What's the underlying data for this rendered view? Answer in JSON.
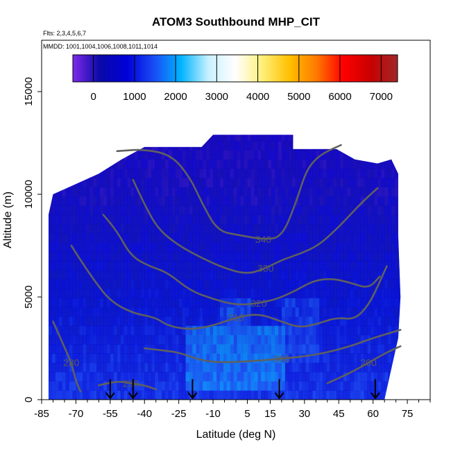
{
  "chart_data": {
    "type": "heatmap",
    "title": "ATOM3 Southbound MHP_CIT",
    "subtitle_flights": "Flts: 2,3,4,5,6,7",
    "subtitle_dates": "MMDD: 1001,1004,1006,1008,1011,1014",
    "xlabel": "Latitude (deg N)",
    "ylabel": "Altitude (m)",
    "xlim": [
      -85,
      85
    ],
    "ylim": [
      0,
      17500
    ],
    "x_ticks": [
      -85,
      -70,
      -55,
      -40,
      -25,
      -10,
      5,
      15,
      30,
      45,
      60,
      75
    ],
    "x_tick_labels": [
      "-85",
      "-70",
      "-55",
      "-40",
      "-25",
      "-10",
      "5",
      "15",
      "30",
      "45",
      "60",
      "75"
    ],
    "y_ticks": [
      0,
      5000,
      10000,
      15000
    ],
    "y_tick_labels": [
      "0",
      "5000",
      "10000",
      "15000"
    ],
    "colorbar": {
      "range": [
        -500,
        7400
      ],
      "ticks": [
        0,
        1000,
        2000,
        3000,
        4000,
        5000,
        6000,
        7000
      ],
      "tick_labels": [
        "0",
        "1000",
        "2000",
        "3000",
        "4000",
        "5000",
        "6000",
        "7000"
      ],
      "colors": [
        "#7f2ae8",
        "#0a0aa8",
        "#0000d8",
        "#1a4cf5",
        "#00b4ff",
        "#c8f0ff",
        "#ffffff",
        "#fff07a",
        "#ffc000",
        "#ff7a00",
        "#ff0000",
        "#c80000",
        "#a02828"
      ]
    },
    "data_extent": {
      "lat_min": -82,
      "lat_max": 71,
      "alt_top_north": 12900,
      "alt_top_mid": 12300,
      "alt_top_south": 10500
    },
    "enhanced_regions": [
      {
        "lat": [
          -23,
          20
        ],
        "alt": [
          200,
          3500
        ],
        "value": 1800
      },
      {
        "lat": [
          -8,
          6
        ],
        "alt": [
          2000,
          4500
        ],
        "value": 1500
      },
      {
        "lat": [
          20,
          35
        ],
        "alt": [
          1500,
          4500
        ],
        "value": 1300
      }
    ],
    "contours": [
      {
        "level": 280,
        "label": "280",
        "points": [
          [
            -80,
            3800
          ],
          [
            -76,
            2800
          ],
          [
            -72,
            1800
          ],
          [
            -70,
            900
          ],
          [
            -68,
            400
          ]
        ]
      },
      {
        "level": 290,
        "label": "290",
        "points": [
          [
            -60,
            700
          ],
          [
            -52,
            900
          ],
          [
            -46,
            800
          ],
          [
            -40,
            700
          ],
          [
            -35,
            500
          ]
        ]
      },
      {
        "level": 290,
        "label": "290",
        "points": [
          [
            40,
            800
          ],
          [
            50,
            1300
          ],
          [
            58,
            1800
          ],
          [
            66,
            2300
          ],
          [
            72,
            2600
          ]
        ]
      },
      {
        "level": 300,
        "label": "300",
        "points": [
          [
            -40,
            2500
          ],
          [
            -32,
            2400
          ],
          [
            -25,
            2300
          ],
          [
            -15,
            1900
          ],
          [
            -5,
            1800
          ],
          [
            10,
            1900
          ],
          [
            20,
            2000
          ],
          [
            30,
            2100
          ],
          [
            40,
            2300
          ],
          [
            50,
            2600
          ],
          [
            60,
            3000
          ],
          [
            72,
            3400
          ]
        ]
      },
      {
        "level": 310,
        "label": "310",
        "points": [
          [
            -72,
            7500
          ],
          [
            -68,
            6800
          ],
          [
            -62,
            5800
          ],
          [
            -55,
            4800
          ],
          [
            -45,
            4200
          ],
          [
            -35,
            4000
          ],
          [
            -30,
            3600
          ],
          [
            -20,
            3400
          ],
          [
            -10,
            3600
          ],
          [
            0,
            4000
          ],
          [
            10,
            4200
          ],
          [
            20,
            3800
          ],
          [
            28,
            3500
          ],
          [
            36,
            3700
          ],
          [
            44,
            4000
          ],
          [
            52,
            3900
          ],
          [
            58,
            4600
          ],
          [
            62,
            5500
          ],
          [
            66,
            6500
          ]
        ]
      },
      {
        "level": 320,
        "label": "320",
        "points": [
          [
            -58,
            9000
          ],
          [
            -52,
            8200
          ],
          [
            -46,
            7000
          ],
          [
            -38,
            6500
          ],
          [
            -30,
            6200
          ],
          [
            -20,
            5300
          ],
          [
            -10,
            4900
          ],
          [
            0,
            4600
          ],
          [
            10,
            4700
          ],
          [
            18,
            4900
          ],
          [
            26,
            5300
          ],
          [
            34,
            5800
          ],
          [
            42,
            5900
          ],
          [
            50,
            5700
          ],
          [
            58,
            5400
          ],
          [
            63,
            6000
          ]
        ]
      },
      {
        "level": 330,
        "label": "330",
        "points": [
          [
            -45,
            10700
          ],
          [
            -40,
            9500
          ],
          [
            -34,
            8300
          ],
          [
            -25,
            7500
          ],
          [
            -15,
            6900
          ],
          [
            -5,
            6400
          ],
          [
            5,
            6100
          ],
          [
            13,
            6400
          ],
          [
            20,
            6800
          ],
          [
            28,
            7100
          ],
          [
            36,
            7500
          ],
          [
            44,
            8300
          ],
          [
            50,
            9000
          ],
          [
            56,
            9700
          ],
          [
            62,
            10300
          ]
        ]
      },
      {
        "level": 340,
        "label": "340",
        "points": [
          [
            -52,
            12100
          ],
          [
            -40,
            12200
          ],
          [
            -28,
            11900
          ],
          [
            -20,
            10800
          ],
          [
            -15,
            9600
          ],
          [
            -8,
            8200
          ],
          [
            2,
            8000
          ],
          [
            12,
            7800
          ],
          [
            20,
            7900
          ],
          [
            26,
            9500
          ],
          [
            30,
            10900
          ],
          [
            33,
            11500
          ],
          [
            38,
            12000
          ],
          [
            46,
            12400
          ]
        ]
      }
    ],
    "flight_markers_lat": [
      -55,
      -45,
      -19,
      19,
      61
    ]
  }
}
